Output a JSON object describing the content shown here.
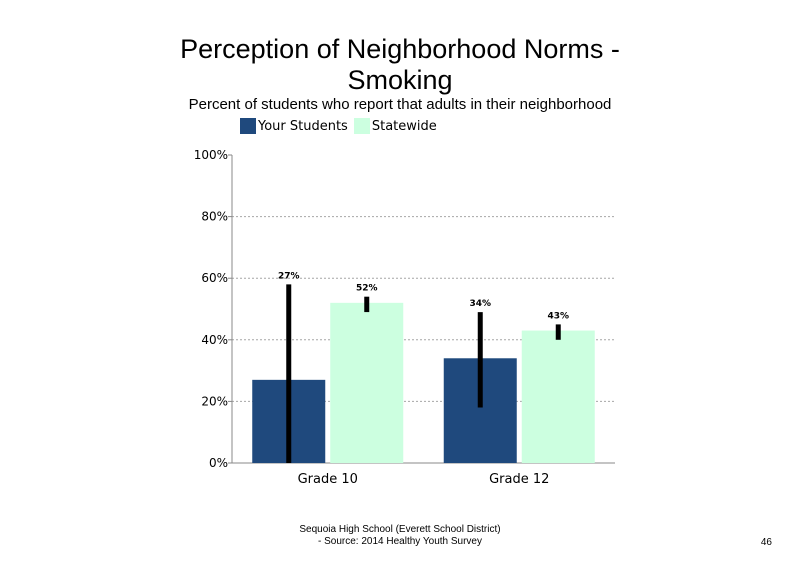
{
  "title_line1": "Perception of Neighborhood Norms -",
  "title_line2": "Smoking",
  "subtitle": "Percent of students who report that adults in their neighborhood",
  "footer_line1": "Sequoia High School (Everett School District)",
  "footer_line2": "- Source: 2014 Healthy  Youth Survey",
  "page_number": "46",
  "chart_data": {
    "type": "bar",
    "title": "Perception of Neighborhood Norms - Smoking",
    "subtitle": "Percent of students who report that adults in their neighborhood",
    "categories": [
      "Grade 10",
      "Grade 12"
    ],
    "series": [
      {
        "name": "Your Students",
        "color": "#1f497d",
        "values": [
          27,
          34
        ],
        "labels": [
          "27%",
          "34%"
        ],
        "error_low": [
          0,
          18
        ],
        "error_high": [
          58,
          49
        ]
      },
      {
        "name": "Statewide",
        "color": "#ccffe0",
        "values": [
          52,
          43
        ],
        "labels": [
          "52%",
          "43%"
        ],
        "error_low": [
          49,
          40
        ],
        "error_high": [
          54,
          45
        ]
      }
    ],
    "y_ticks": [
      "0%",
      "20%",
      "40%",
      "60%",
      "80%",
      "100%"
    ],
    "y_tick_values": [
      0,
      20,
      40,
      60,
      80,
      100
    ],
    "ylim": [
      0,
      100
    ],
    "grid": true,
    "legend_position": "top-center"
  }
}
